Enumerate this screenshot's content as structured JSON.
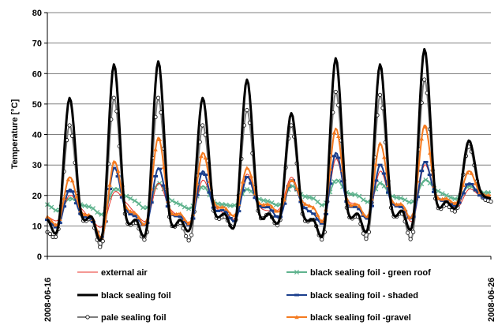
{
  "chart_data": {
    "type": "line",
    "title": "",
    "xlabel": "",
    "ylabel": "Temperature [°C]",
    "ylim": [
      0,
      80
    ],
    "y_ticks": [
      0,
      10,
      20,
      30,
      40,
      50,
      60,
      70,
      80
    ],
    "x_tick_labels": [
      "2008-06-16",
      "2008-06-26"
    ],
    "grid": "horizontal",
    "legend_position": "bottom",
    "x": [
      0,
      0.25,
      0.5,
      0.75,
      1,
      1.25,
      1.5,
      1.75,
      2,
      2.25,
      2.5,
      2.75,
      3,
      3.25,
      3.5,
      3.75,
      4,
      4.25,
      4.5,
      4.75,
      5,
      5.25,
      5.5,
      5.75,
      6,
      6.25,
      6.5,
      6.75,
      7,
      7.25,
      7.5,
      7.75,
      8,
      8.25,
      8.5,
      8.75,
      9,
      9.25,
      9.5,
      9.75,
      10
    ],
    "series": [
      {
        "name": "external air",
        "color": "#e8312a",
        "marker": "none",
        "width": 1,
        "values": [
          13,
          12,
          20,
          16,
          12,
          10,
          21,
          18,
          14,
          12,
          24,
          16,
          13,
          12,
          25,
          17,
          14,
          13,
          27,
          17,
          15,
          16,
          26,
          18,
          16,
          12,
          32,
          19,
          17,
          13,
          28,
          18,
          16,
          12,
          30,
          20,
          18,
          16,
          22,
          20,
          19
        ]
      },
      {
        "name": "black sealing foil - green roof",
        "color": "#5fb38e",
        "marker": "x",
        "width": 2,
        "values": [
          17,
          15,
          19,
          17,
          16,
          14,
          22,
          20,
          18,
          16,
          24,
          19,
          17,
          16,
          23,
          18,
          17,
          17,
          22,
          19,
          18,
          17,
          23,
          20,
          19,
          17,
          25,
          21,
          20,
          18,
          24,
          20,
          19,
          18,
          25,
          22,
          20,
          19,
          23,
          21,
          21
        ]
      },
      {
        "name": "black sealing foil",
        "color": "#000000",
        "marker": "none",
        "width": 3,
        "values": [
          12,
          10,
          52,
          15,
          13,
          8,
          63,
          15,
          12,
          10,
          64,
          14,
          12,
          11,
          52,
          16,
          14,
          12,
          58,
          16,
          14,
          13,
          47,
          15,
          12,
          10,
          65,
          17,
          14,
          11,
          63,
          17,
          15,
          12,
          68,
          20,
          18,
          17,
          38,
          22,
          19
        ]
      },
      {
        "name": "black sealing foil - shaded",
        "color": "#1a3e8c",
        "marker": "-",
        "width": 2,
        "values": [
          12,
          10,
          22,
          14,
          12,
          7,
          29,
          16,
          13,
          11,
          29,
          15,
          13,
          11,
          28,
          16,
          15,
          12,
          26,
          17,
          16,
          13,
          25,
          17,
          14,
          12,
          34,
          18,
          16,
          13,
          30,
          18,
          16,
          13,
          31,
          20,
          18,
          17,
          24,
          20,
          19
        ]
      },
      {
        "name": "pale sealing foil",
        "color": "#7d7d7d",
        "marker": "o",
        "width": 2,
        "values": [
          8,
          9,
          43,
          14,
          12,
          5,
          52,
          14,
          11,
          8,
          52,
          13,
          11,
          7,
          43,
          15,
          13,
          12,
          48,
          15,
          14,
          12,
          43,
          14,
          12,
          8,
          54,
          16,
          13,
          8,
          53,
          16,
          14,
          8,
          58,
          19,
          17,
          16,
          36,
          21,
          18
        ]
      },
      {
        "name": "black sealing foil -gravel",
        "color": "#f47a20",
        "marker": "^",
        "width": 2,
        "values": [
          13,
          11,
          26,
          15,
          13,
          7,
          31,
          17,
          14,
          12,
          39,
          16,
          14,
          12,
          34,
          18,
          16,
          14,
          29,
          18,
          17,
          15,
          25,
          18,
          16,
          13,
          42,
          19,
          17,
          14,
          37,
          19,
          17,
          14,
          43,
          21,
          19,
          18,
          28,
          21,
          20
        ]
      }
    ]
  }
}
